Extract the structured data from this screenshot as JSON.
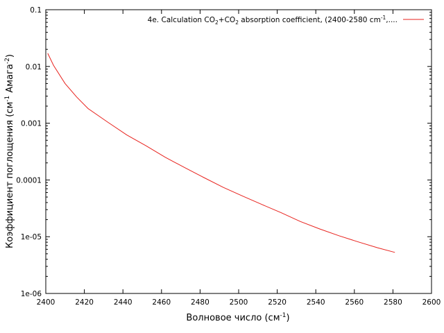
{
  "chart_data": {
    "type": "line",
    "xlabel": "Волновое число (см",
    "xlabel_sup": "-1",
    "xlabel_end": ")",
    "ylabel": "Коэффициент поглощения (см",
    "ylabel_sup1": "-1",
    "ylabel_mid": " Амага",
    "ylabel_sup2": "-2",
    "ylabel_end": ")",
    "xlim": [
      2400,
      2600
    ],
    "ylim": [
      1e-06,
      0.1
    ],
    "y_scale": "log",
    "grid": false,
    "legend_position": "top-right",
    "x_ticks": [
      2400,
      2420,
      2440,
      2460,
      2480,
      2500,
      2520,
      2540,
      2560,
      2580,
      2600
    ],
    "x_tick_labels": [
      "2400",
      "2420",
      "2440",
      "2460",
      "2480",
      "2500",
      "2520",
      "2540",
      "2560",
      "2580",
      "2600"
    ],
    "y_ticks": [
      1e-06,
      1e-05,
      0.0001,
      0.001,
      0.01,
      0.1
    ],
    "y_tick_labels": [
      "1e-06",
      "1e-05",
      "0.0001",
      "0.001",
      "0.01",
      "0.1"
    ],
    "series": [
      {
        "name": "4e. Calculation CO2+CO2 absorption coefficient, (2400-2580 cm-1,....",
        "legend_parts": {
          "p1": "4e. Calculation CO",
          "s1": "2",
          "p2": "+CO",
          "s2": "2",
          "p3": " absorption coefficient, (2400-2580 cm",
          "s3": "-1",
          "p4": ",...."
        },
        "color": "#e8221d",
        "x": [
          2401,
          2404,
          2410,
          2416,
          2422,
          2432,
          2442,
          2452,
          2462,
          2472,
          2482,
          2492,
          2502,
          2512,
          2522,
          2532,
          2542,
          2552,
          2562,
          2572,
          2581
        ],
        "y": [
          0.017,
          0.0105,
          0.005,
          0.0029,
          0.0018,
          0.00105,
          0.00062,
          0.0004,
          0.00025,
          0.000165,
          0.00011,
          7.4e-05,
          5.2e-05,
          3.7e-05,
          2.65e-05,
          1.85e-05,
          1.37e-05,
          1.04e-05,
          8.1e-06,
          6.4e-06,
          5.3e-06
        ]
      }
    ]
  }
}
